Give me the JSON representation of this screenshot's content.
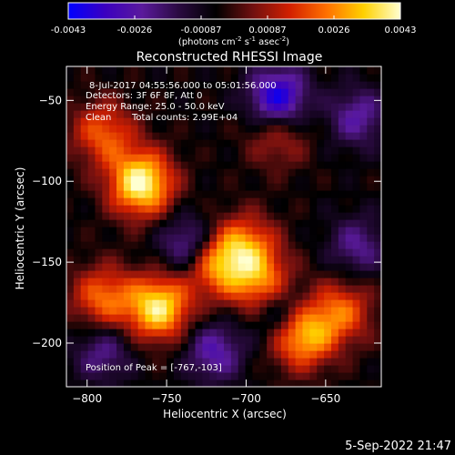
{
  "chart_data": {
    "type": "heatmap",
    "title": "Reconstructed RHESSI Image",
    "xlabel": "Heliocentric X (arcsec)",
    "ylabel": "Heliocentric Y (arcsec)",
    "xlim": [
      -813,
      -615
    ],
    "ylim": [
      -227,
      -29
    ],
    "x_ticks": [
      -800,
      -750,
      -700,
      -650
    ],
    "y_ticks": [
      -50,
      -100,
      -150,
      -200
    ],
    "colorbar": {
      "range": [
        -0.0043,
        0.0043
      ],
      "ticks": [
        "-0.0043",
        "-0.0026",
        "-0.00087",
        "0.00087",
        "0.0026",
        "0.0043"
      ],
      "unit_label": "(photons cm",
      "unit_sup1": "-2",
      "unit_mid1": " s",
      "unit_sup2": "-1",
      "unit_mid2": " asec",
      "unit_sup3": "-2",
      "unit_end": ")",
      "colors": [
        "#0000ff",
        "#3b00c0",
        "#5a1a9c",
        "#2a0a40",
        "#000000",
        "#701010",
        "#d22000",
        "#ff7000",
        "#ffd000",
        "#ffffd0"
      ]
    },
    "annotations": {
      "time": "8-Jul-2017 04:55:56.000 to 05:01:56.000",
      "detectors": "Detectors: 3F 6F 8F, Att 0",
      "energy": "Energy Range: 25.0 - 50.0 keV",
      "method": "Clean",
      "counts": "Total counts: 2.99E+04",
      "peak": "Position of Peak = [-767,-103]"
    },
    "grid": false,
    "sources": [
      {
        "x": -766,
        "y": -101,
        "amp": 1.05
      },
      {
        "x": -790,
        "y": -70,
        "amp": 0.55
      },
      {
        "x": -720,
        "y": -150,
        "amp": 0.75
      },
      {
        "x": -700,
        "y": -140,
        "amp": 0.6
      },
      {
        "x": -690,
        "y": -165,
        "amp": 0.7
      },
      {
        "x": -755,
        "y": -178,
        "amp": 0.95
      },
      {
        "x": -790,
        "y": -172,
        "amp": 0.6
      },
      {
        "x": -665,
        "y": -195,
        "amp": 0.85
      },
      {
        "x": -640,
        "y": -180,
        "amp": 0.55
      },
      {
        "x": -680,
        "y": -72,
        "amp": 0.35
      }
    ],
    "dips": [
      {
        "x": -680,
        "y": -48,
        "amp": 0.8
      },
      {
        "x": -735,
        "y": -140,
        "amp": 0.6
      },
      {
        "x": -720,
        "y": -205,
        "amp": 0.5
      },
      {
        "x": -680,
        "y": -180,
        "amp": 0.55
      },
      {
        "x": -790,
        "y": -205,
        "amp": 0.4
      },
      {
        "x": -630,
        "y": -140,
        "amp": 0.4
      },
      {
        "x": -630,
        "y": -60,
        "amp": 0.45
      }
    ]
  },
  "footer": {
    "date": "5-Sep-2022 21:47"
  }
}
